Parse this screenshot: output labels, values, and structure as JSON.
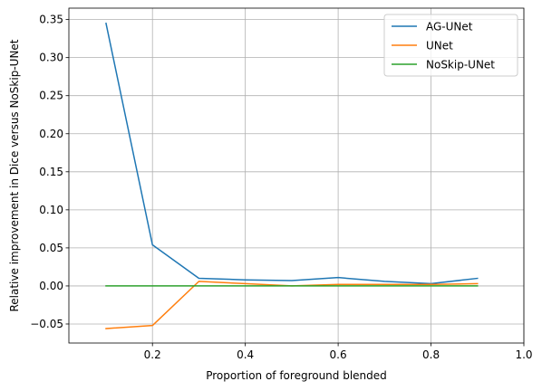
{
  "chart_data": {
    "type": "line",
    "title": "",
    "xlabel": "Proportion of foreground blended",
    "ylabel": "Relative improvement in Dice versus NoSkip-UNet",
    "xlim": [
      0.02,
      1.0
    ],
    "ylim": [
      -0.075,
      0.365
    ],
    "xticks": [
      0.2,
      0.4,
      0.6,
      0.8,
      1.0
    ],
    "xtick_labels": [
      "0.2",
      "0.4",
      "0.6",
      "0.8",
      "1.0"
    ],
    "yticks": [
      -0.05,
      0.0,
      0.05,
      0.1,
      0.15,
      0.2,
      0.25,
      0.3,
      0.35
    ],
    "ytick_labels": [
      "−0.05",
      "0.00",
      "0.05",
      "0.10",
      "0.15",
      "0.20",
      "0.25",
      "0.30",
      "0.35"
    ],
    "grid": true,
    "legend_position": "top-right",
    "x": [
      0.1,
      0.2,
      0.3,
      0.4,
      0.5,
      0.6,
      0.7,
      0.8,
      0.9
    ],
    "series": [
      {
        "name": "AG-UNet",
        "color": "#1f77b4",
        "values": [
          0.345,
          0.054,
          0.01,
          0.008,
          0.007,
          0.011,
          0.006,
          0.003,
          0.01
        ]
      },
      {
        "name": "UNet",
        "color": "#ff7f0e",
        "values": [
          -0.056,
          -0.052,
          0.006,
          0.003,
          0.0,
          0.002,
          0.002,
          0.002,
          0.003
        ]
      },
      {
        "name": "NoSkip-UNet",
        "color": "#2ca02c",
        "values": [
          0.0,
          0.0,
          0.0,
          0.0,
          0.0,
          0.0,
          0.0,
          0.0,
          0.0
        ]
      }
    ]
  }
}
